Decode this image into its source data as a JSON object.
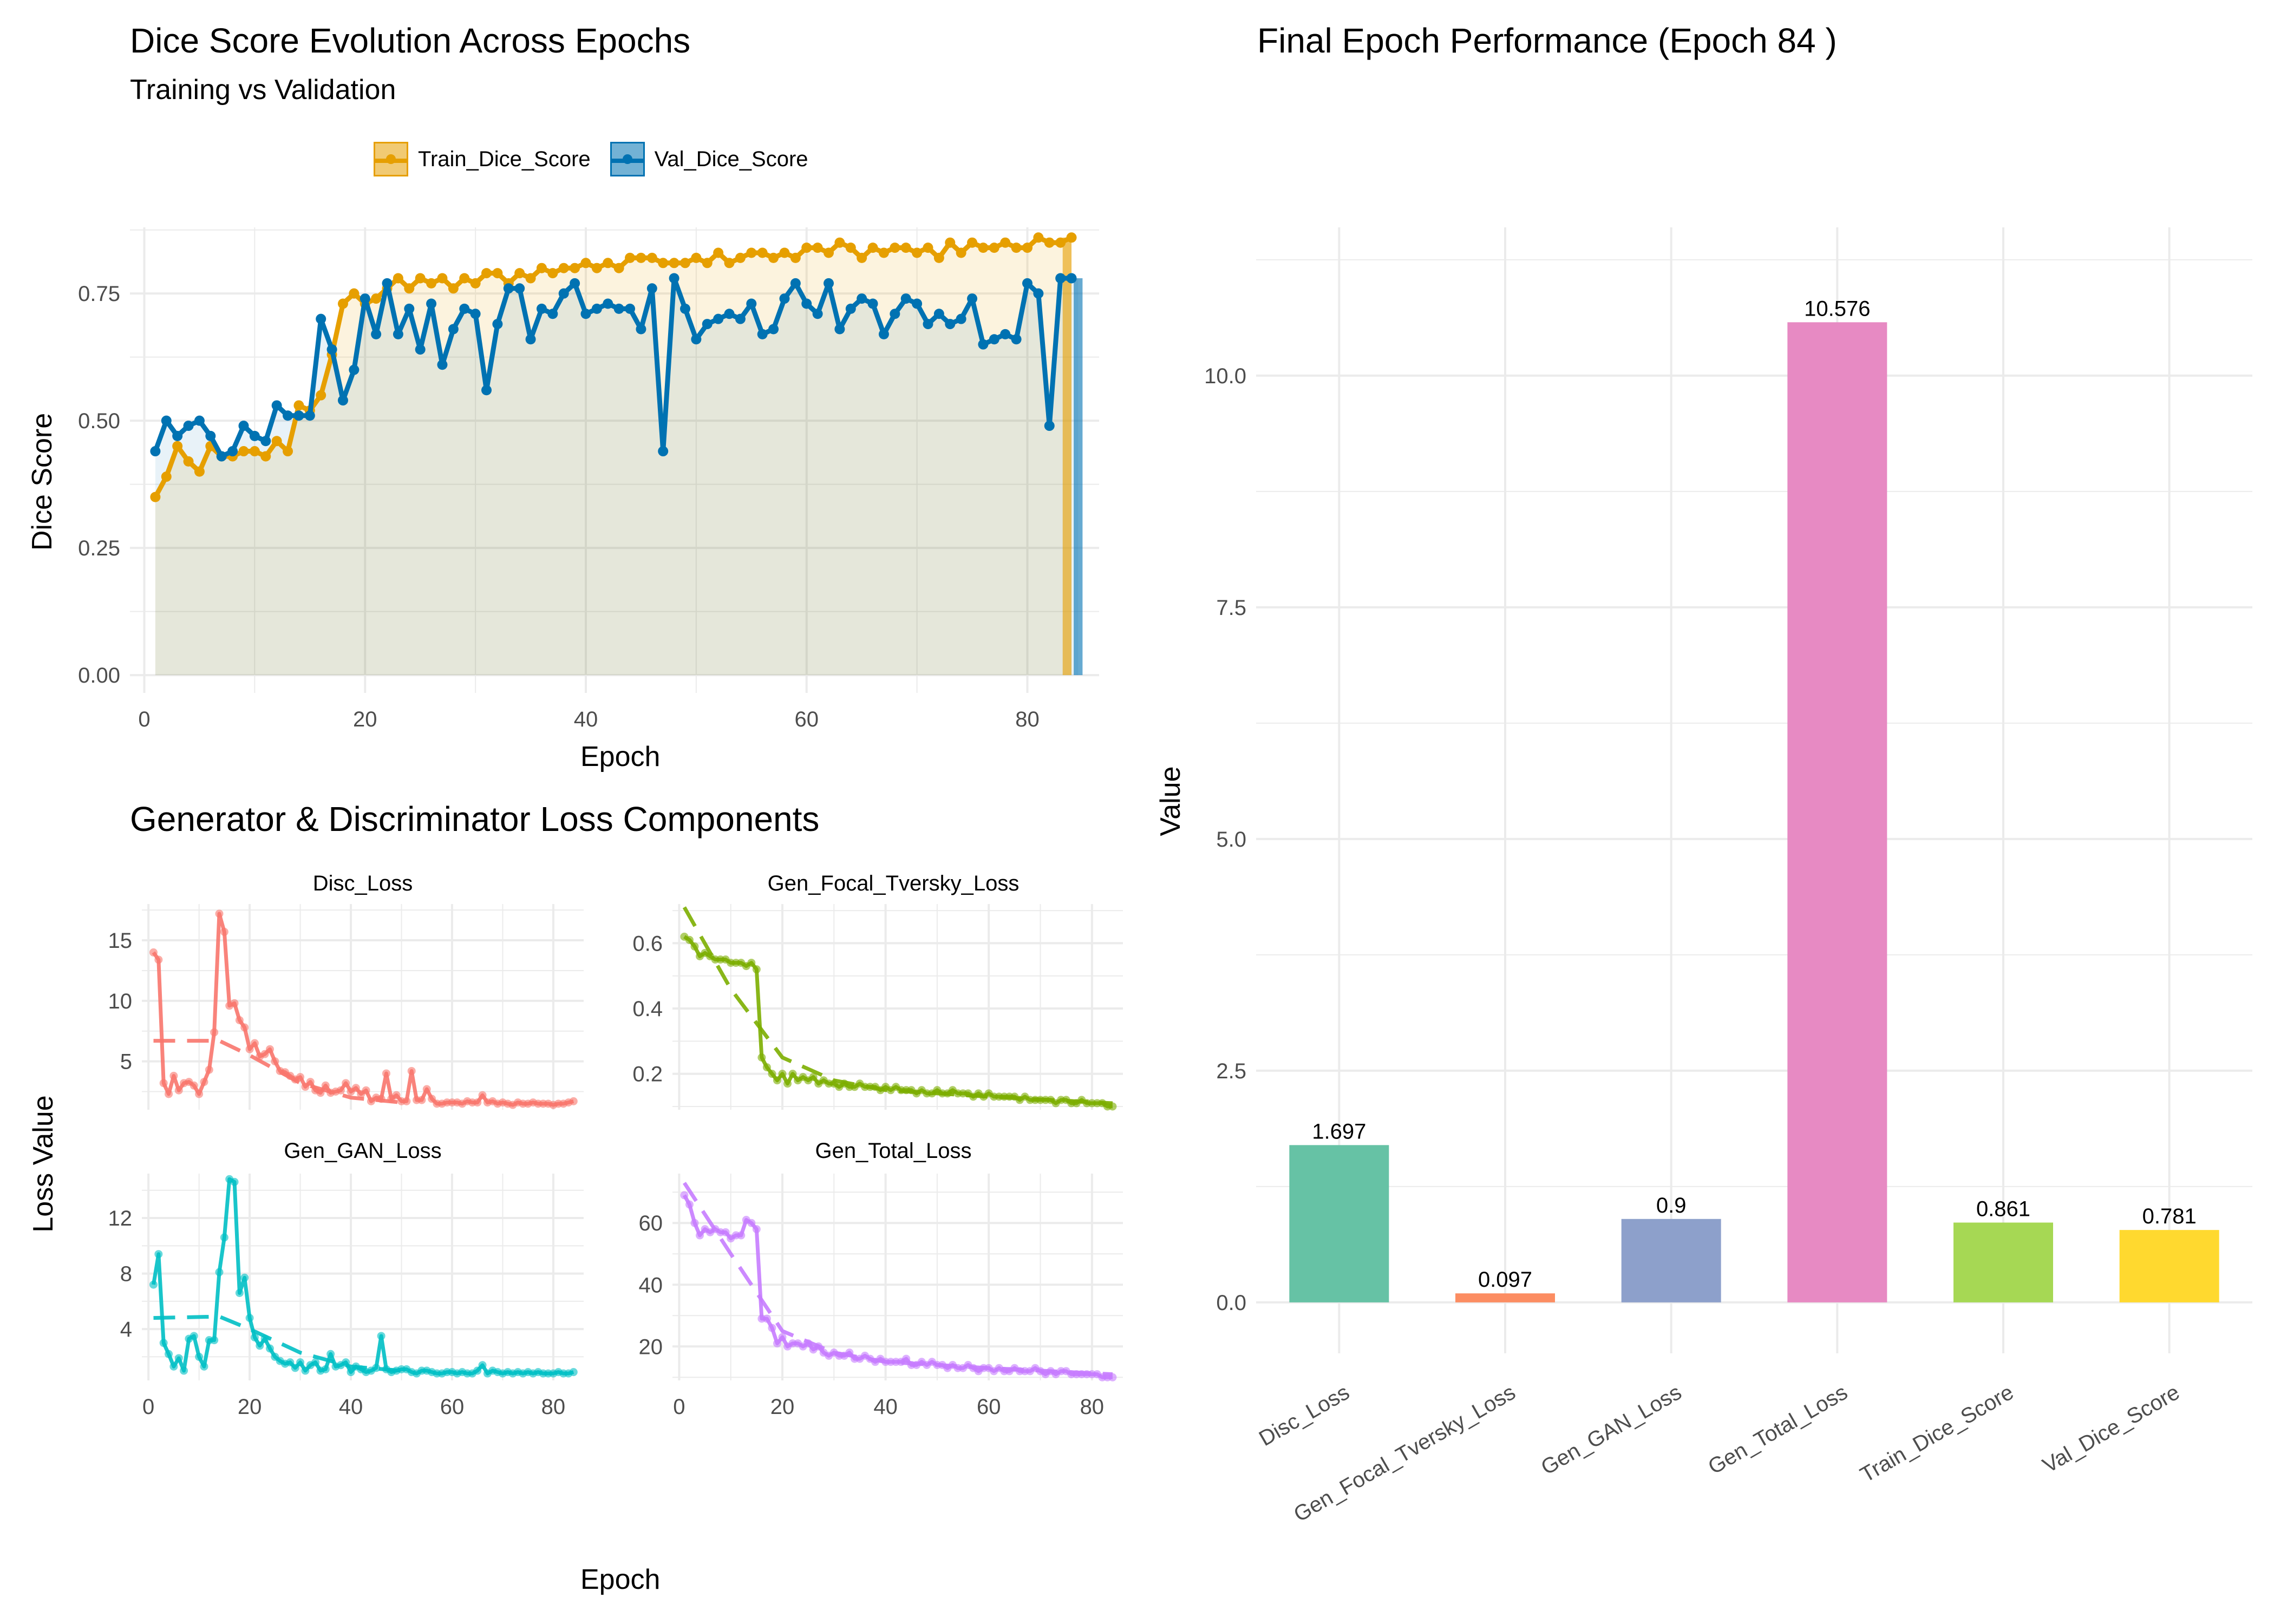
{
  "panel_a": {
    "title": "Dice Score Evolution Across Epochs",
    "subtitle": "Training vs Validation",
    "xlabel": "Epoch",
    "ylabel": "Dice Score",
    "legend": [
      "Train_Dice_Score",
      "Val_Dice_Score"
    ]
  },
  "panel_b": {
    "title": "Generator & Discriminator Loss Components",
    "xlabel": "Epoch",
    "ylabel": "Loss Value",
    "facets": [
      "Disc_Loss",
      "Gen_Focal_Tversky_Loss",
      "Gen_GAN_Loss",
      "Gen_Total_Loss"
    ]
  },
  "panel_c": {
    "title": "Final Epoch Performance (Epoch 84 )",
    "ylabel": "Value"
  },
  "colors": {
    "train": "#E69F00",
    "val": "#0072B2",
    "disc": "#F8766D",
    "focal": "#7CAE00",
    "gan": "#00BFC4",
    "total": "#C77CFF",
    "grid": "#EBEBEB",
    "tick_text": "#4D4D4D"
  },
  "chart_data": [
    {
      "type": "line",
      "title": "Dice Score Evolution Across Epochs",
      "subtitle": "Training vs Validation",
      "xlabel": "Epoch",
      "ylabel": "Dice Score",
      "xlim": [
        0,
        84
      ],
      "ylim": [
        0,
        0.875
      ],
      "xticks": [
        0,
        20,
        40,
        60,
        80
      ],
      "yticks": [
        0.0,
        0.25,
        0.5,
        0.75
      ],
      "ytick_labels": [
        "0.00",
        "0.25",
        "0.50",
        "0.75"
      ],
      "legend_position": "top",
      "grid": true,
      "series": [
        {
          "name": "Train_Dice_Score",
          "x_start": 1,
          "values": [
            0.35,
            0.39,
            0.45,
            0.42,
            0.4,
            0.45,
            0.43,
            0.43,
            0.44,
            0.44,
            0.43,
            0.46,
            0.44,
            0.53,
            0.52,
            0.55,
            0.63,
            0.73,
            0.75,
            0.73,
            0.74,
            0.76,
            0.78,
            0.76,
            0.78,
            0.77,
            0.78,
            0.76,
            0.78,
            0.77,
            0.79,
            0.79,
            0.77,
            0.79,
            0.78,
            0.8,
            0.79,
            0.8,
            0.8,
            0.81,
            0.8,
            0.81,
            0.8,
            0.82,
            0.82,
            0.82,
            0.81,
            0.81,
            0.81,
            0.82,
            0.81,
            0.83,
            0.81,
            0.82,
            0.83,
            0.83,
            0.82,
            0.83,
            0.82,
            0.84,
            0.84,
            0.83,
            0.85,
            0.84,
            0.82,
            0.84,
            0.83,
            0.84,
            0.84,
            0.83,
            0.84,
            0.82,
            0.85,
            0.83,
            0.85,
            0.84,
            0.84,
            0.85,
            0.84,
            0.84,
            0.86,
            0.85,
            0.85,
            0.86
          ]
        },
        {
          "name": "Val_Dice_Score",
          "x_start": 1,
          "values": [
            0.44,
            0.5,
            0.47,
            0.49,
            0.5,
            0.47,
            0.43,
            0.44,
            0.49,
            0.47,
            0.46,
            0.53,
            0.51,
            0.51,
            0.51,
            0.7,
            0.64,
            0.54,
            0.6,
            0.74,
            0.67,
            0.77,
            0.67,
            0.72,
            0.64,
            0.73,
            0.61,
            0.68,
            0.72,
            0.71,
            0.56,
            0.69,
            0.76,
            0.76,
            0.66,
            0.72,
            0.71,
            0.75,
            0.77,
            0.71,
            0.72,
            0.73,
            0.72,
            0.72,
            0.68,
            0.76,
            0.44,
            0.78,
            0.72,
            0.66,
            0.69,
            0.7,
            0.71,
            0.7,
            0.73,
            0.67,
            0.68,
            0.74,
            0.77,
            0.73,
            0.71,
            0.77,
            0.68,
            0.72,
            0.74,
            0.73,
            0.67,
            0.71,
            0.74,
            0.73,
            0.69,
            0.71,
            0.69,
            0.7,
            0.74,
            0.65,
            0.66,
            0.67,
            0.66,
            0.77,
            0.75,
            0.49,
            0.78,
            0.78
          ]
        }
      ]
    },
    {
      "type": "line",
      "title": "Generator & Discriminator Loss Components",
      "xlabel": "Epoch",
      "ylabel": "Loss Value",
      "xticks": [
        0,
        20,
        40,
        60,
        80
      ],
      "facets": [
        {
          "name": "Disc_Loss",
          "ylim": [
            1.0,
            18.0
          ],
          "yticks": [
            5,
            10,
            15
          ],
          "x_start": 1,
          "values": [
            14.0,
            13.4,
            3.2,
            2.3,
            3.8,
            2.6,
            3.2,
            3.3,
            3.0,
            2.3,
            3.3,
            4.3,
            7.4,
            17.2,
            15.7,
            9.6,
            9.8,
            8.4,
            7.8,
            6.0,
            6.5,
            5.4,
            5.6,
            6.0,
            5.0,
            4.2,
            4.1,
            3.8,
            3.5,
            3.7,
            2.9,
            3.3,
            2.6,
            2.4,
            3.0,
            2.4,
            2.5,
            2.6,
            3.2,
            2.5,
            2.8,
            2.3,
            2.6,
            1.7,
            2.0,
            1.9,
            4.0,
            1.9,
            2.2,
            1.7,
            1.7,
            4.2,
            1.8,
            1.8,
            2.7,
            1.9,
            1.5,
            1.5,
            1.6,
            1.6,
            1.6,
            1.5,
            1.7,
            1.6,
            1.6,
            2.2,
            1.6,
            1.7,
            1.5,
            1.6,
            1.5,
            1.4,
            1.6,
            1.5,
            1.5,
            1.6,
            1.5,
            1.5,
            1.5,
            1.4,
            1.5,
            1.5,
            1.6,
            1.7
          ],
          "trend": [
            [
              1,
              6.7
            ],
            [
              14,
              6.7
            ],
            [
              20,
              5.5
            ],
            [
              30,
              3.2
            ],
            [
              40,
              2.0
            ],
            [
              50,
              1.6
            ]
          ]
        },
        {
          "name": "Gen_Focal_Tversky_Loss",
          "ylim": [
            0.09,
            0.72
          ],
          "yticks": [
            0.2,
            0.4,
            0.6
          ],
          "x_start": 1,
          "values": [
            0.62,
            0.61,
            0.59,
            0.56,
            0.57,
            0.56,
            0.55,
            0.55,
            0.55,
            0.54,
            0.54,
            0.54,
            0.53,
            0.54,
            0.52,
            0.25,
            0.22,
            0.2,
            0.18,
            0.2,
            0.17,
            0.2,
            0.18,
            0.19,
            0.18,
            0.19,
            0.17,
            0.18,
            0.17,
            0.17,
            0.16,
            0.17,
            0.16,
            0.16,
            0.17,
            0.16,
            0.16,
            0.16,
            0.15,
            0.16,
            0.15,
            0.16,
            0.15,
            0.15,
            0.15,
            0.14,
            0.15,
            0.14,
            0.14,
            0.15,
            0.14,
            0.14,
            0.15,
            0.14,
            0.14,
            0.14,
            0.13,
            0.14,
            0.13,
            0.14,
            0.13,
            0.13,
            0.13,
            0.13,
            0.13,
            0.12,
            0.13,
            0.12,
            0.12,
            0.12,
            0.12,
            0.12,
            0.11,
            0.12,
            0.12,
            0.11,
            0.11,
            0.12,
            0.11,
            0.11,
            0.11,
            0.11,
            0.1,
            0.1
          ],
          "trend": [
            [
              1,
              0.71
            ],
            [
              10,
              0.46
            ],
            [
              20,
              0.25
            ],
            [
              30,
              0.18
            ],
            [
              40,
              0.15
            ],
            [
              60,
              0.13
            ],
            [
              84,
              0.11
            ]
          ]
        },
        {
          "name": "Gen_GAN_Loss",
          "ylim": [
            0.3,
            15.2
          ],
          "yticks": [
            4,
            8,
            12
          ],
          "x_start": 1,
          "values": [
            7.2,
            9.4,
            3.0,
            2.2,
            1.3,
            1.9,
            1.0,
            3.3,
            3.5,
            2.0,
            1.3,
            3.2,
            3.2,
            8.1,
            10.6,
            14.8,
            14.6,
            6.6,
            7.7,
            4.8,
            3.4,
            2.8,
            3.3,
            2.6,
            2.0,
            1.7,
            1.5,
            1.6,
            1.2,
            1.6,
            1.0,
            1.4,
            1.6,
            1.0,
            1.1,
            2.2,
            1.3,
            1.4,
            1.6,
            0.9,
            1.3,
            1.1,
            0.9,
            1.0,
            1.2,
            3.5,
            1.1,
            0.9,
            1.0,
            1.1,
            1.1,
            0.9,
            0.8,
            1.0,
            1.0,
            0.9,
            0.8,
            0.8,
            0.9,
            0.9,
            0.8,
            0.9,
            0.8,
            0.8,
            1.0,
            1.4,
            0.8,
            1.0,
            0.9,
            0.8,
            0.9,
            0.8,
            0.9,
            0.8,
            0.9,
            0.8,
            0.9,
            0.8,
            0.8,
            0.8,
            0.9,
            0.8,
            0.8,
            0.9
          ],
          "trend": [
            [
              1,
              4.8
            ],
            [
              14,
              4.9
            ],
            [
              20,
              4.0
            ],
            [
              30,
              2.3
            ],
            [
              40,
              1.3
            ],
            [
              50,
              1.0
            ]
          ]
        },
        {
          "name": "Gen_Total_Loss",
          "ylim": [
            9.0,
            76.0
          ],
          "yticks": [
            20,
            40,
            60
          ],
          "x_start": 1,
          "values": [
            69,
            66,
            60,
            56,
            58,
            57,
            58,
            57,
            57,
            55,
            56,
            56,
            61,
            60,
            58,
            29,
            29,
            26,
            21,
            23,
            20,
            21,
            21,
            20,
            21,
            19,
            20,
            18,
            17,
            18,
            17,
            17,
            18,
            16,
            16,
            17,
            16,
            15,
            16,
            15,
            15,
            15,
            15,
            16,
            14,
            14,
            15,
            14,
            15,
            14,
            14,
            13,
            14,
            13,
            13,
            14,
            13,
            12,
            13,
            13,
            12,
            13,
            12,
            12,
            13,
            12,
            12,
            12,
            13,
            12,
            11,
            12,
            11,
            12,
            12,
            11,
            11,
            11,
            11,
            11,
            11,
            10,
            10,
            10
          ],
          "trend": [
            [
              1,
              73
            ],
            [
              10,
              50
            ],
            [
              20,
              25
            ],
            [
              30,
              18
            ],
            [
              40,
              15
            ],
            [
              60,
              13
            ],
            [
              84,
              11
            ]
          ]
        }
      ]
    },
    {
      "type": "bar",
      "title": "Final Epoch Performance (Epoch 84 )",
      "ylabel": "Value",
      "categories": [
        "Disc_Loss",
        "Gen_Focal_Tversky_Loss",
        "Gen_GAN_Loss",
        "Gen_Total_Loss",
        "Train_Dice_Score",
        "Val_Dice_Score"
      ],
      "values": [
        1.697,
        0.097,
        0.9,
        10.576,
        0.861,
        0.781
      ],
      "value_labels": [
        "1.697",
        "0.097",
        "0.9",
        "10.576",
        "0.861",
        "0.781"
      ],
      "colors": [
        "#66C2A5",
        "#FC8D62",
        "#8DA0CB",
        "#E78AC3",
        "#A6D854",
        "#FFD92F"
      ],
      "ylim": [
        0,
        11.1
      ],
      "yticks": [
        0.0,
        2.5,
        5.0,
        7.5,
        10.0
      ],
      "ytick_labels": [
        "0.0",
        "2.5",
        "5.0",
        "7.5",
        "10.0"
      ],
      "grid": true
    }
  ]
}
